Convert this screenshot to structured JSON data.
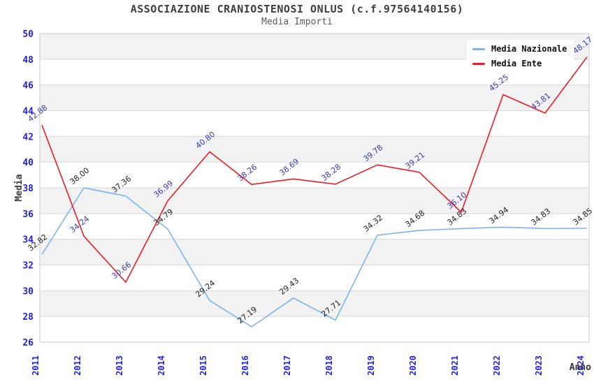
{
  "header": {
    "title": "ASSOCIAZIONE CRANIOSTENOSI ONLUS (c.f.97564140156)",
    "subtitle": "Media Importi"
  },
  "legend": {
    "items": [
      {
        "label": "Media Nazionale",
        "color": "#7cb5ec"
      },
      {
        "label": "Media Ente",
        "color": "#ed1c24"
      }
    ]
  },
  "axes": {
    "y_title": "Media",
    "x_title": "Anno",
    "tick_color": "#2121e8",
    "axis_title_color": "#3c3c3c"
  },
  "colors": {
    "band_gray": "#f2f2f2",
    "band_white": "#ffffff",
    "gridline": "#d9d9d9",
    "plot_border": "#c9c9c9"
  },
  "chart_data": {
    "type": "line",
    "title": "ASSOCIAZIONE CRANIOSTENOSI ONLUS (c.f.97564140156)",
    "subtitle": "Media Importi",
    "xlabel": "Anno",
    "ylabel": "Media",
    "x": [
      2011,
      2012,
      2013,
      2014,
      2015,
      2016,
      2017,
      2018,
      2019,
      2020,
      2021,
      2022,
      2023,
      2024
    ],
    "ylim": [
      26,
      50
    ],
    "ytick_step": 2,
    "grid": "horizontal alternating bands",
    "legend_position": "top-right",
    "series": [
      {
        "name": "Media Nazionale",
        "color": "#7cb5ec",
        "label_color": "#222222",
        "values": [
          32.82,
          38.0,
          37.36,
          34.79,
          29.24,
          27.19,
          29.43,
          27.71,
          34.32,
          34.68,
          34.83,
          34.94,
          34.83,
          34.85
        ]
      },
      {
        "name": "Media Ente",
        "color": "#ed1c24",
        "label_color": "#3939b0",
        "values": [
          42.88,
          34.24,
          30.66,
          36.99,
          40.8,
          38.26,
          38.69,
          38.28,
          39.78,
          39.21,
          36.1,
          45.25,
          43.81,
          48.17
        ]
      }
    ]
  }
}
